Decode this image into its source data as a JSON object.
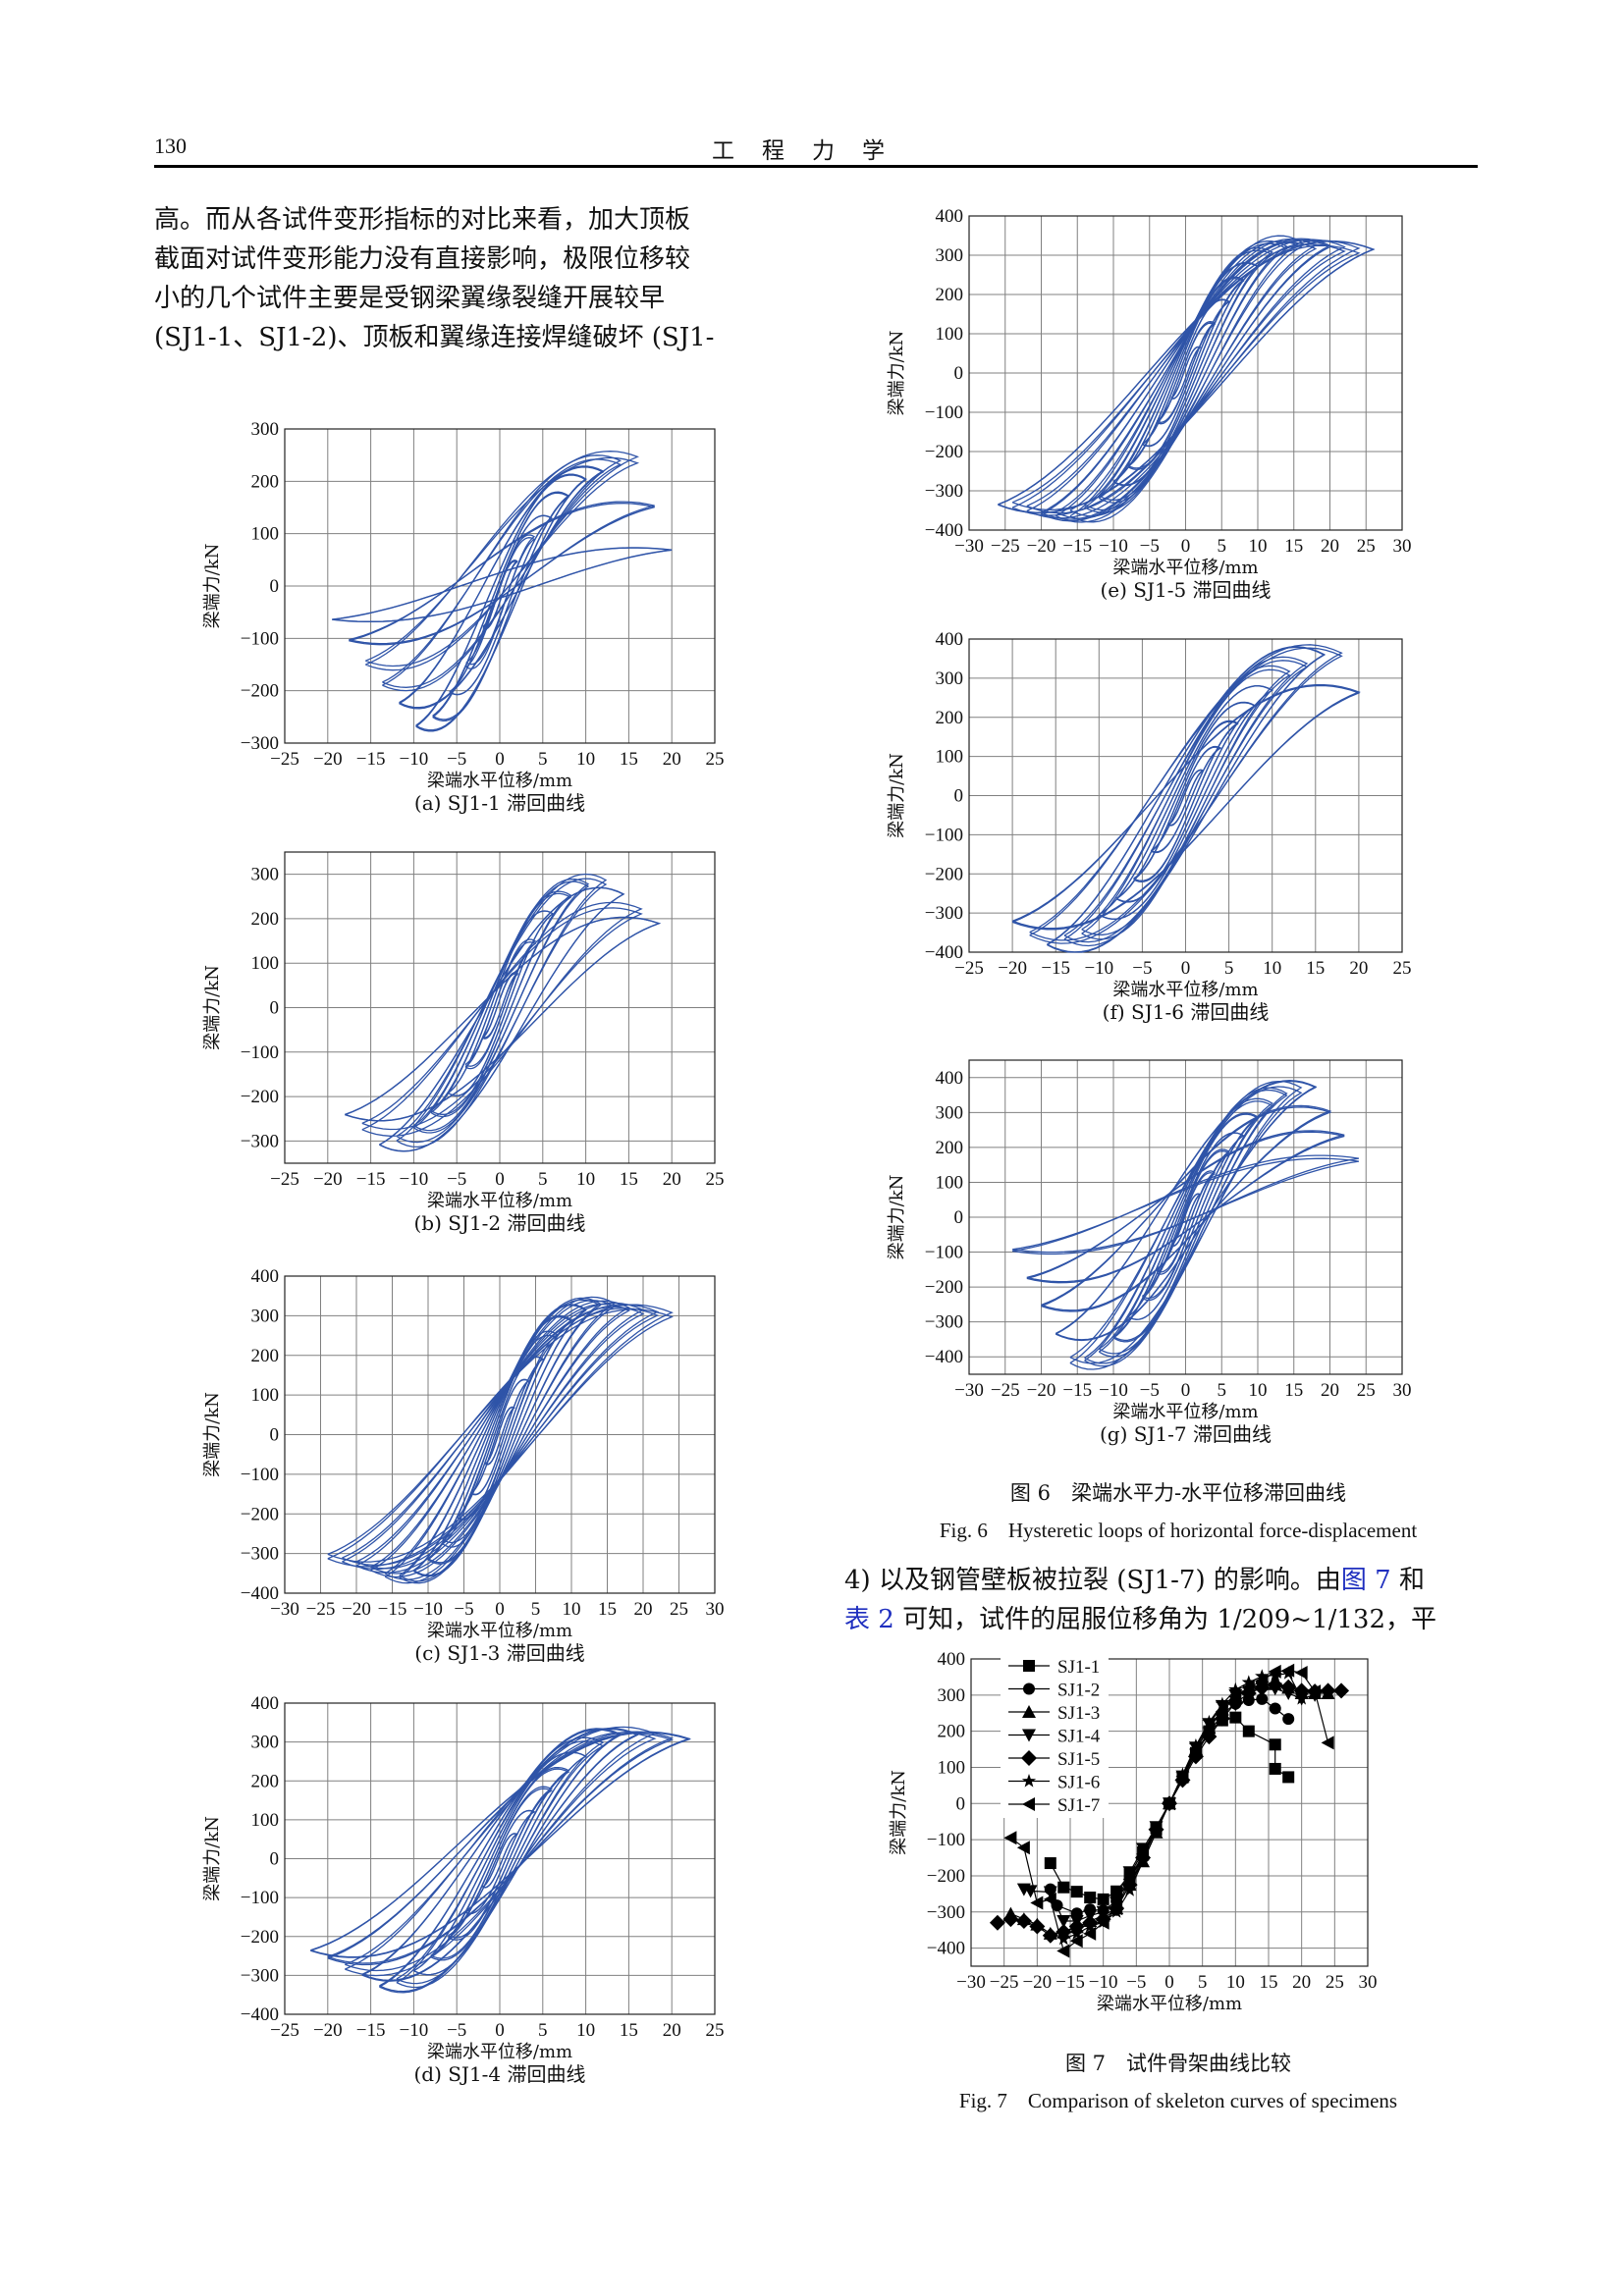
{
  "header": {
    "page_number": "130",
    "journal_title": "工程力学"
  },
  "body": {
    "left_paragraph": [
      "高。而从各试件变形指标的对比来看，加大顶板",
      "截面对试件变形能力没有直接影响，极限位移较",
      "小的几个试件主要是受钢梁翼缘裂缝开展较早",
      "(SJ1-1、SJ1-2)、顶板和翼缘连接焊缝破坏 (SJ1-"
    ],
    "right_paragraph": {
      "line1_pre": "4) 以及钢管壁板被拉裂 (SJ1-7) 的影响。由",
      "line1_link": "图 7",
      "line1_post": " 和",
      "line2_link": "表 2",
      "line2_post": " 可知，试件的屈服位移角为 1/209~1/132，平"
    }
  },
  "colors": {
    "hysteresis_line": "#2f54a8",
    "grid": "#808080",
    "skeleton_line": "#000000",
    "link": "#1f2fbf"
  },
  "figure6": {
    "caption_cn": "图 6　梁端水平力-水平位移滞回曲线",
    "caption_en": "Fig. 6　Hysteretic loops of horizontal force-displacement"
  },
  "figure7": {
    "caption_cn": "图 7　试件骨架曲线比较",
    "caption_en": "Fig. 7　Comparison of skeleton curves of specimens"
  },
  "chart_data": [
    {
      "id": "a",
      "type": "line",
      "title": "(a) SJ1-1 滞回曲线",
      "xlabel": "梁端水平位移/mm",
      "ylabel": "梁端力/kN",
      "xlim": [
        -25,
        25
      ],
      "ylim": [
        -300,
        300
      ],
      "xticks": [
        -25,
        -20,
        -15,
        -10,
        -5,
        0,
        5,
        10,
        15,
        20,
        25
      ],
      "yticks": [
        -300,
        -200,
        -100,
        0,
        100,
        200,
        300
      ],
      "grid": true,
      "envelope": {
        "pos_peak": [
          16,
          240
        ],
        "neg_peak": [
          -10,
          -262
        ],
        "max_disp": 20,
        "min_disp": -19.5,
        "pos_end_force": 70,
        "neg_end_force": -65
      },
      "cycles": [
        2,
        4,
        6,
        8,
        10,
        12,
        14,
        16,
        18,
        20
      ]
    },
    {
      "id": "b",
      "type": "line",
      "title": "(b) SJ1-2 滞回曲线",
      "xlabel": "梁端水平位移/mm",
      "ylabel": "梁端力/kN",
      "xlim": [
        -25,
        25
      ],
      "ylim": [
        -350,
        350
      ],
      "xticks": [
        -25,
        -20,
        -15,
        -10,
        -5,
        0,
        5,
        10,
        15,
        20,
        25
      ],
      "yticks": [
        -300,
        -200,
        -100,
        0,
        100,
        200,
        300
      ],
      "grid": true,
      "envelope": {
        "pos_peak": [
          12,
          285
        ],
        "neg_peak": [
          -14,
          -300
        ],
        "max_disp": 18.5,
        "min_disp": -18,
        "pos_end_force": 185,
        "neg_end_force": -235
      },
      "cycles": [
        2,
        4,
        6,
        8,
        10,
        12,
        14,
        16,
        18
      ]
    },
    {
      "id": "c",
      "type": "line",
      "title": "(c) SJ1-3 滞回曲线",
      "xlabel": "梁端水平位移/mm",
      "ylabel": "梁端力/kN",
      "xlim": [
        -30,
        30
      ],
      "ylim": [
        -400,
        400
      ],
      "xticks": [
        -30,
        -25,
        -20,
        -15,
        -10,
        -5,
        0,
        5,
        10,
        15,
        20,
        25,
        30
      ],
      "yticks": [
        -400,
        -300,
        -200,
        -100,
        0,
        100,
        200,
        300,
        400
      ],
      "grid": true,
      "envelope": {
        "pos_peak": [
          15,
          330
        ],
        "neg_peak": [
          -15,
          -360
        ],
        "max_disp": 24,
        "min_disp": -24,
        "pos_end_force": 300,
        "neg_end_force": -305
      },
      "cycles": [
        2,
        4,
        6,
        8,
        10,
        12,
        14,
        16,
        18,
        20,
        22,
        24
      ]
    },
    {
      "id": "d",
      "type": "line",
      "title": "(d) SJ1-4 滞回曲线",
      "xlabel": "梁端水平位移/mm",
      "ylabel": "梁端力/kN",
      "xlim": [
        -25,
        25
      ],
      "ylim": [
        -400,
        400
      ],
      "xticks": [
        -25,
        -20,
        -15,
        -10,
        -5,
        0,
        5,
        10,
        15,
        20,
        25
      ],
      "yticks": [
        -400,
        -300,
        -200,
        -100,
        0,
        100,
        200,
        300,
        400
      ],
      "grid": true,
      "envelope": {
        "pos_peak": [
          16,
          322
        ],
        "neg_peak": [
          -14,
          -325
        ],
        "max_disp": 22,
        "min_disp": -22,
        "pos_end_force": 300,
        "neg_end_force": -230
      },
      "cycles": [
        2,
        4,
        6,
        8,
        10,
        12,
        14,
        16,
        18,
        20,
        22
      ]
    },
    {
      "id": "e",
      "type": "line",
      "title": "(e) SJ1-5 滞回曲线",
      "xlabel": "梁端水平位移/mm",
      "ylabel": "梁端力/kN",
      "xlim": [
        -30,
        30
      ],
      "ylim": [
        -400,
        400
      ],
      "xticks": [
        -30,
        -25,
        -20,
        -15,
        -10,
        -5,
        0,
        5,
        10,
        15,
        20,
        25,
        30
      ],
      "yticks": [
        -400,
        -300,
        -200,
        -100,
        0,
        100,
        200,
        300,
        400
      ],
      "grid": true,
      "envelope": {
        "pos_peak": [
          16,
          330
        ],
        "neg_peak": [
          -18,
          -365
        ],
        "max_disp": 26,
        "min_disp": -26,
        "pos_end_force": 310,
        "neg_end_force": -330
      },
      "cycles": [
        2,
        4,
        6,
        8,
        10,
        12,
        14,
        16,
        18,
        20,
        22,
        24,
        26
      ]
    },
    {
      "id": "f",
      "type": "line",
      "title": "(f) SJ1-6 滞回曲线",
      "xlabel": "梁端水平位移/mm",
      "ylabel": "梁端力/kN",
      "xlim": [
        -25,
        25
      ],
      "ylim": [
        -400,
        400
      ],
      "xticks": [
        -25,
        -20,
        -15,
        -10,
        -5,
        0,
        5,
        10,
        15,
        20,
        25
      ],
      "yticks": [
        -400,
        -300,
        -200,
        -100,
        0,
        100,
        200,
        300,
        400
      ],
      "grid": true,
      "envelope": {
        "pos_peak": [
          18,
          360
        ],
        "neg_peak": [
          -16,
          -375
        ],
        "max_disp": 20,
        "min_disp": -20,
        "pos_end_force": 270,
        "neg_end_force": -330
      },
      "cycles": [
        2,
        4,
        6,
        8,
        10,
        12,
        14,
        16,
        18,
        20
      ]
    },
    {
      "id": "g",
      "type": "line",
      "title": "(g) SJ1-7 滞回曲线",
      "xlabel": "梁端水平位移/mm",
      "ylabel": "梁端力/kN",
      "xlim": [
        -30,
        30
      ],
      "ylim": [
        -450,
        450
      ],
      "xticks": [
        -30,
        -25,
        -20,
        -15,
        -10,
        -5,
        0,
        5,
        10,
        15,
        20,
        25,
        30
      ],
      "yticks": [
        -400,
        -300,
        -200,
        -100,
        0,
        100,
        200,
        300,
        400
      ],
      "grid": true,
      "envelope": {
        "pos_peak": [
          18,
          368
        ],
        "neg_peak": [
          -16,
          -408
        ],
        "max_disp": 24,
        "min_disp": -24,
        "pos_end_force": 165,
        "neg_end_force": -95
      },
      "cycles": [
        2,
        4,
        6,
        8,
        10,
        12,
        14,
        16,
        18,
        20,
        22,
        24
      ]
    },
    {
      "id": "skeleton",
      "type": "line",
      "title": "",
      "xlabel": "梁端水平位移/mm",
      "ylabel": "梁端力/kN",
      "xlim": [
        -30,
        30
      ],
      "ylim": [
        -450,
        400
      ],
      "xticks": [
        -30,
        -25,
        -20,
        -15,
        -10,
        -5,
        0,
        5,
        10,
        15,
        20,
        25,
        30
      ],
      "yticks": [
        -400,
        -300,
        -200,
        -100,
        0,
        100,
        200,
        300,
        400
      ],
      "grid": true,
      "legend_position": "top-left",
      "series": [
        {
          "name": "SJ1-1",
          "marker": "square",
          "x": [
            -18,
            -16,
            -14,
            -12,
            -10,
            -8,
            -6,
            -4,
            -2,
            0,
            2,
            4,
            6,
            8,
            10,
            12,
            16,
            16,
            18
          ],
          "y": [
            -165,
            -232,
            -244,
            -260,
            -265,
            -243,
            -196,
            -135,
            -68,
            0,
            72,
            140,
            200,
            230,
            238,
            200,
            163,
            96,
            73
          ]
        },
        {
          "name": "SJ1-2",
          "marker": "circle",
          "x": [
            -18,
            -17,
            -14,
            -12,
            -10,
            -8,
            -6,
            -4,
            -2,
            0,
            2,
            4,
            6,
            8,
            10,
            12,
            14,
            16,
            18
          ],
          "y": [
            -237,
            -282,
            -304,
            -293,
            -296,
            -270,
            -210,
            -150,
            -70,
            0,
            70,
            138,
            195,
            248,
            276,
            286,
            289,
            263,
            234
          ]
        },
        {
          "name": "SJ1-3",
          "marker": "triangle-up",
          "x": [
            -24,
            -22,
            -20,
            -18,
            -16,
            -14,
            -12,
            -10,
            -8,
            -6,
            -4,
            -2,
            0,
            2,
            4,
            6,
            8,
            10,
            12,
            14,
            16,
            18,
            20,
            22,
            24
          ],
          "y": [
            -305,
            -320,
            -335,
            -360,
            -357,
            -342,
            -325,
            -310,
            -290,
            -225,
            -160,
            -80,
            0,
            75,
            150,
            210,
            260,
            300,
            320,
            330,
            330,
            320,
            305,
            305,
            305
          ]
        },
        {
          "name": "SJ1-4",
          "marker": "triangle-down",
          "x": [
            -22,
            -21,
            -18,
            -16,
            -14,
            -12,
            -10,
            -8,
            -6,
            -4,
            -2,
            0,
            2,
            4,
            6,
            8,
            10,
            12,
            14,
            16,
            18,
            20,
            22
          ],
          "y": [
            -237,
            -242,
            -245,
            -325,
            -325,
            -310,
            -300,
            -275,
            -190,
            -125,
            -65,
            0,
            75,
            155,
            220,
            270,
            300,
            310,
            322,
            318,
            305,
            290,
            300
          ]
        },
        {
          "name": "SJ1-5",
          "marker": "diamond",
          "x": [
            -26,
            -24,
            -22,
            -20,
            -18,
            -16,
            -14,
            -12,
            -10,
            -8,
            -6,
            -4,
            -2,
            0,
            2,
            4,
            6,
            8,
            10,
            12,
            14,
            16,
            18,
            20,
            22,
            24,
            26
          ],
          "y": [
            -330,
            -320,
            -325,
            -340,
            -365,
            -355,
            -340,
            -330,
            -320,
            -290,
            -225,
            -150,
            -72,
            0,
            65,
            130,
            185,
            235,
            278,
            305,
            320,
            328,
            322,
            312,
            310,
            312,
            312
          ]
        },
        {
          "name": "SJ1-6",
          "marker": "star",
          "x": [
            -16,
            -14,
            -12,
            -10,
            -8,
            -6,
            -4,
            -2,
            0,
            2,
            4,
            6,
            8,
            10,
            12,
            14,
            16,
            18,
            20
          ],
          "y": [
            -375,
            -360,
            -340,
            -328,
            -300,
            -240,
            -160,
            -80,
            0,
            80,
            160,
            225,
            275,
            315,
            335,
            352,
            355,
            360,
            290
          ]
        },
        {
          "name": "SJ1-7",
          "marker": "triangle-left",
          "x": [
            -24,
            -22,
            -20,
            -18,
            -16,
            -14,
            -12,
            -10,
            -8,
            -6,
            -4,
            -2,
            0,
            2,
            4,
            6,
            8,
            10,
            12,
            14,
            16,
            18,
            20,
            22,
            24
          ],
          "y": [
            -95,
            -122,
            -275,
            -265,
            -408,
            -380,
            -360,
            -330,
            -290,
            -210,
            -140,
            -70,
            0,
            75,
            150,
            210,
            255,
            295,
            320,
            340,
            365,
            368,
            362,
            310,
            168
          ]
        }
      ]
    }
  ]
}
